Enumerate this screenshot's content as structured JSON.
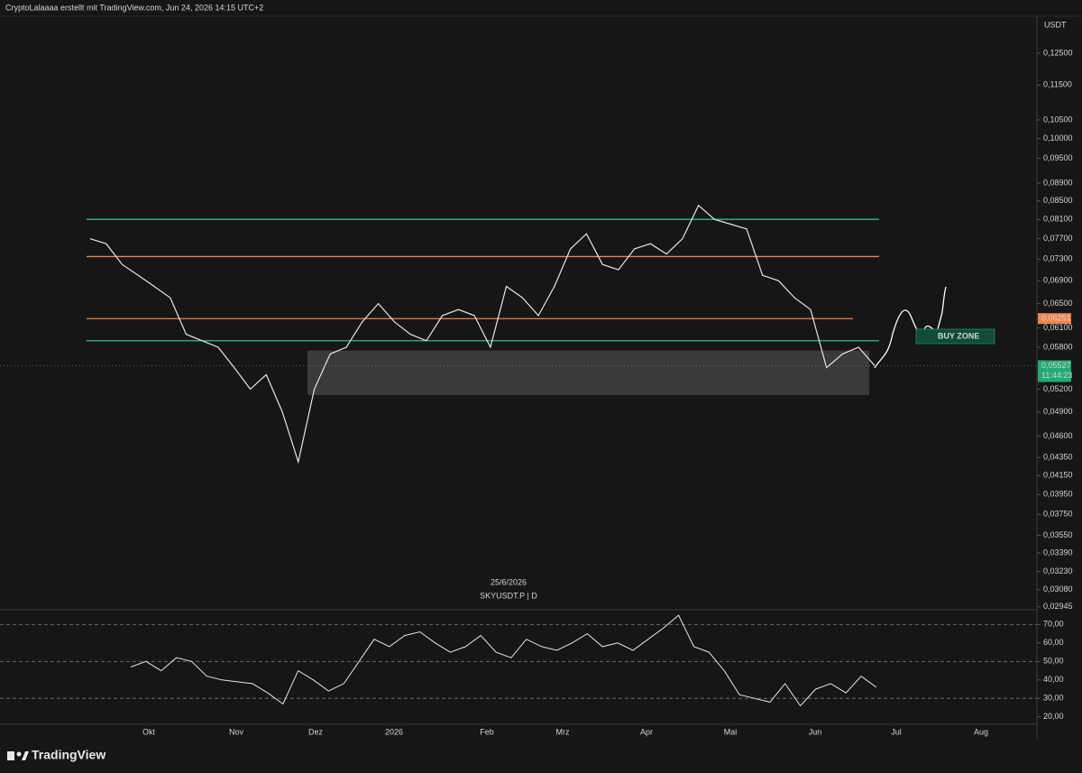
{
  "header": {
    "credit": "CryptoLalaaaa erstellt mit TradingView.com, Jun 24, 2026 14:15 UTC+2"
  },
  "footer": {
    "logo": "TradingView"
  },
  "chart_data": [
    {
      "type": "line",
      "title": "SKYUSDT.P | D",
      "date_label": "25/6/2026",
      "currency": "USDT",
      "log_scale": true,
      "ylim": [
        0.0293,
        0.137
      ],
      "yticks": [
        {
          "value": 0.125,
          "label": "0,12500"
        },
        {
          "value": 0.115,
          "label": "0,11500"
        },
        {
          "value": 0.105,
          "label": "0,10500"
        },
        {
          "value": 0.1,
          "label": "0,10000"
        },
        {
          "value": 0.095,
          "label": "0,09500"
        },
        {
          "value": 0.089,
          "label": "0,08900"
        },
        {
          "value": 0.085,
          "label": "0,08500"
        },
        {
          "value": 0.081,
          "label": "0,08100"
        },
        {
          "value": 0.077,
          "label": "0,07700"
        },
        {
          "value": 0.073,
          "label": "0,07300"
        },
        {
          "value": 0.069,
          "label": "0,06900"
        },
        {
          "value": 0.065,
          "label": "0,06500"
        },
        {
          "value": 0.061,
          "label": "0,06100"
        },
        {
          "value": 0.058,
          "label": "0,05800"
        },
        {
          "value": 0.052,
          "label": "0,05200"
        },
        {
          "value": 0.049,
          "label": "0,04900"
        },
        {
          "value": 0.046,
          "label": "0,04600"
        },
        {
          "value": 0.0435,
          "label": "0,04350"
        },
        {
          "value": 0.0415,
          "label": "0,04150"
        },
        {
          "value": 0.0395,
          "label": "0,03950"
        },
        {
          "value": 0.0375,
          "label": "0,03750"
        },
        {
          "value": 0.0355,
          "label": "0,03550"
        },
        {
          "value": 0.0339,
          "label": "0,03390"
        },
        {
          "value": 0.0323,
          "label": "0,03230"
        },
        {
          "value": 0.0308,
          "label": "0,03080"
        },
        {
          "value": 0.02945,
          "label": "0,02945"
        }
      ],
      "x_labels": [
        "Okt",
        "Nov",
        "Dez",
        "2026",
        "Feb",
        "Mrz",
        "Apr",
        "Mai",
        "Jun",
        "Jul",
        "Aug"
      ],
      "series": [
        {
          "color": "#e6e6e6",
          "values": [
            0.077,
            0.076,
            0.072,
            0.07,
            0.068,
            0.066,
            0.06,
            0.059,
            0.058,
            0.055,
            0.052,
            0.054,
            0.049,
            0.043,
            0.052,
            0.057,
            0.058,
            0.062,
            0.065,
            0.062,
            0.06,
            0.059,
            0.063,
            0.064,
            0.063,
            0.058,
            0.068,
            0.066,
            0.063,
            0.068,
            0.075,
            0.078,
            0.072,
            0.071,
            0.075,
            0.076,
            0.074,
            0.077,
            0.084,
            0.081,
            0.08,
            0.079,
            0.07,
            0.069,
            0.066,
            0.064,
            0.055,
            0.057,
            0.058,
            0.0553
          ]
        }
      ],
      "levels": [
        {
          "value": 0.081,
          "color": "#2bbf7e"
        },
        {
          "value": 0.0735,
          "color": "#f0834a"
        },
        {
          "value": 0.06251,
          "color": "#f0834a"
        },
        {
          "value": 0.059,
          "color": "#2bbf7e"
        }
      ],
      "zone": {
        "from": 0.0512,
        "to": 0.0575,
        "color": "#5a5a5a"
      },
      "buy_zone": {
        "label": "BUY ZONE",
        "color": "#0f4d36"
      },
      "price_labels": [
        {
          "value": 0.06251,
          "label": "0,06251",
          "color": "#f0834a"
        },
        {
          "value": 0.05527,
          "label": "0,05527",
          "color": "#22ab6e",
          "countdown": "11:44:23"
        }
      ]
    },
    {
      "type": "line",
      "ylim": [
        16,
        77
      ],
      "yticks": [
        {
          "value": 70,
          "label": "70,00"
        },
        {
          "value": 60,
          "label": "60,00"
        },
        {
          "value": 50,
          "label": "50,00"
        },
        {
          "value": 40,
          "label": "40,00"
        },
        {
          "value": 30,
          "label": "30,00"
        },
        {
          "value": 20,
          "label": "20,00"
        }
      ],
      "bands": [
        70,
        50,
        30
      ],
      "series": [
        {
          "color": "#e6e6e6",
          "values": [
            47,
            50,
            45,
            52,
            50,
            42,
            40,
            39,
            38,
            33,
            27,
            45,
            40,
            34,
            38,
            50,
            62,
            58,
            64,
            66,
            60,
            55,
            58,
            64,
            55,
            52,
            62,
            58,
            56,
            60,
            65,
            58,
            60,
            56,
            62,
            68,
            75,
            58,
            55,
            45,
            32,
            30,
            28,
            38,
            26,
            35,
            38,
            33,
            42,
            36
          ]
        }
      ]
    }
  ]
}
